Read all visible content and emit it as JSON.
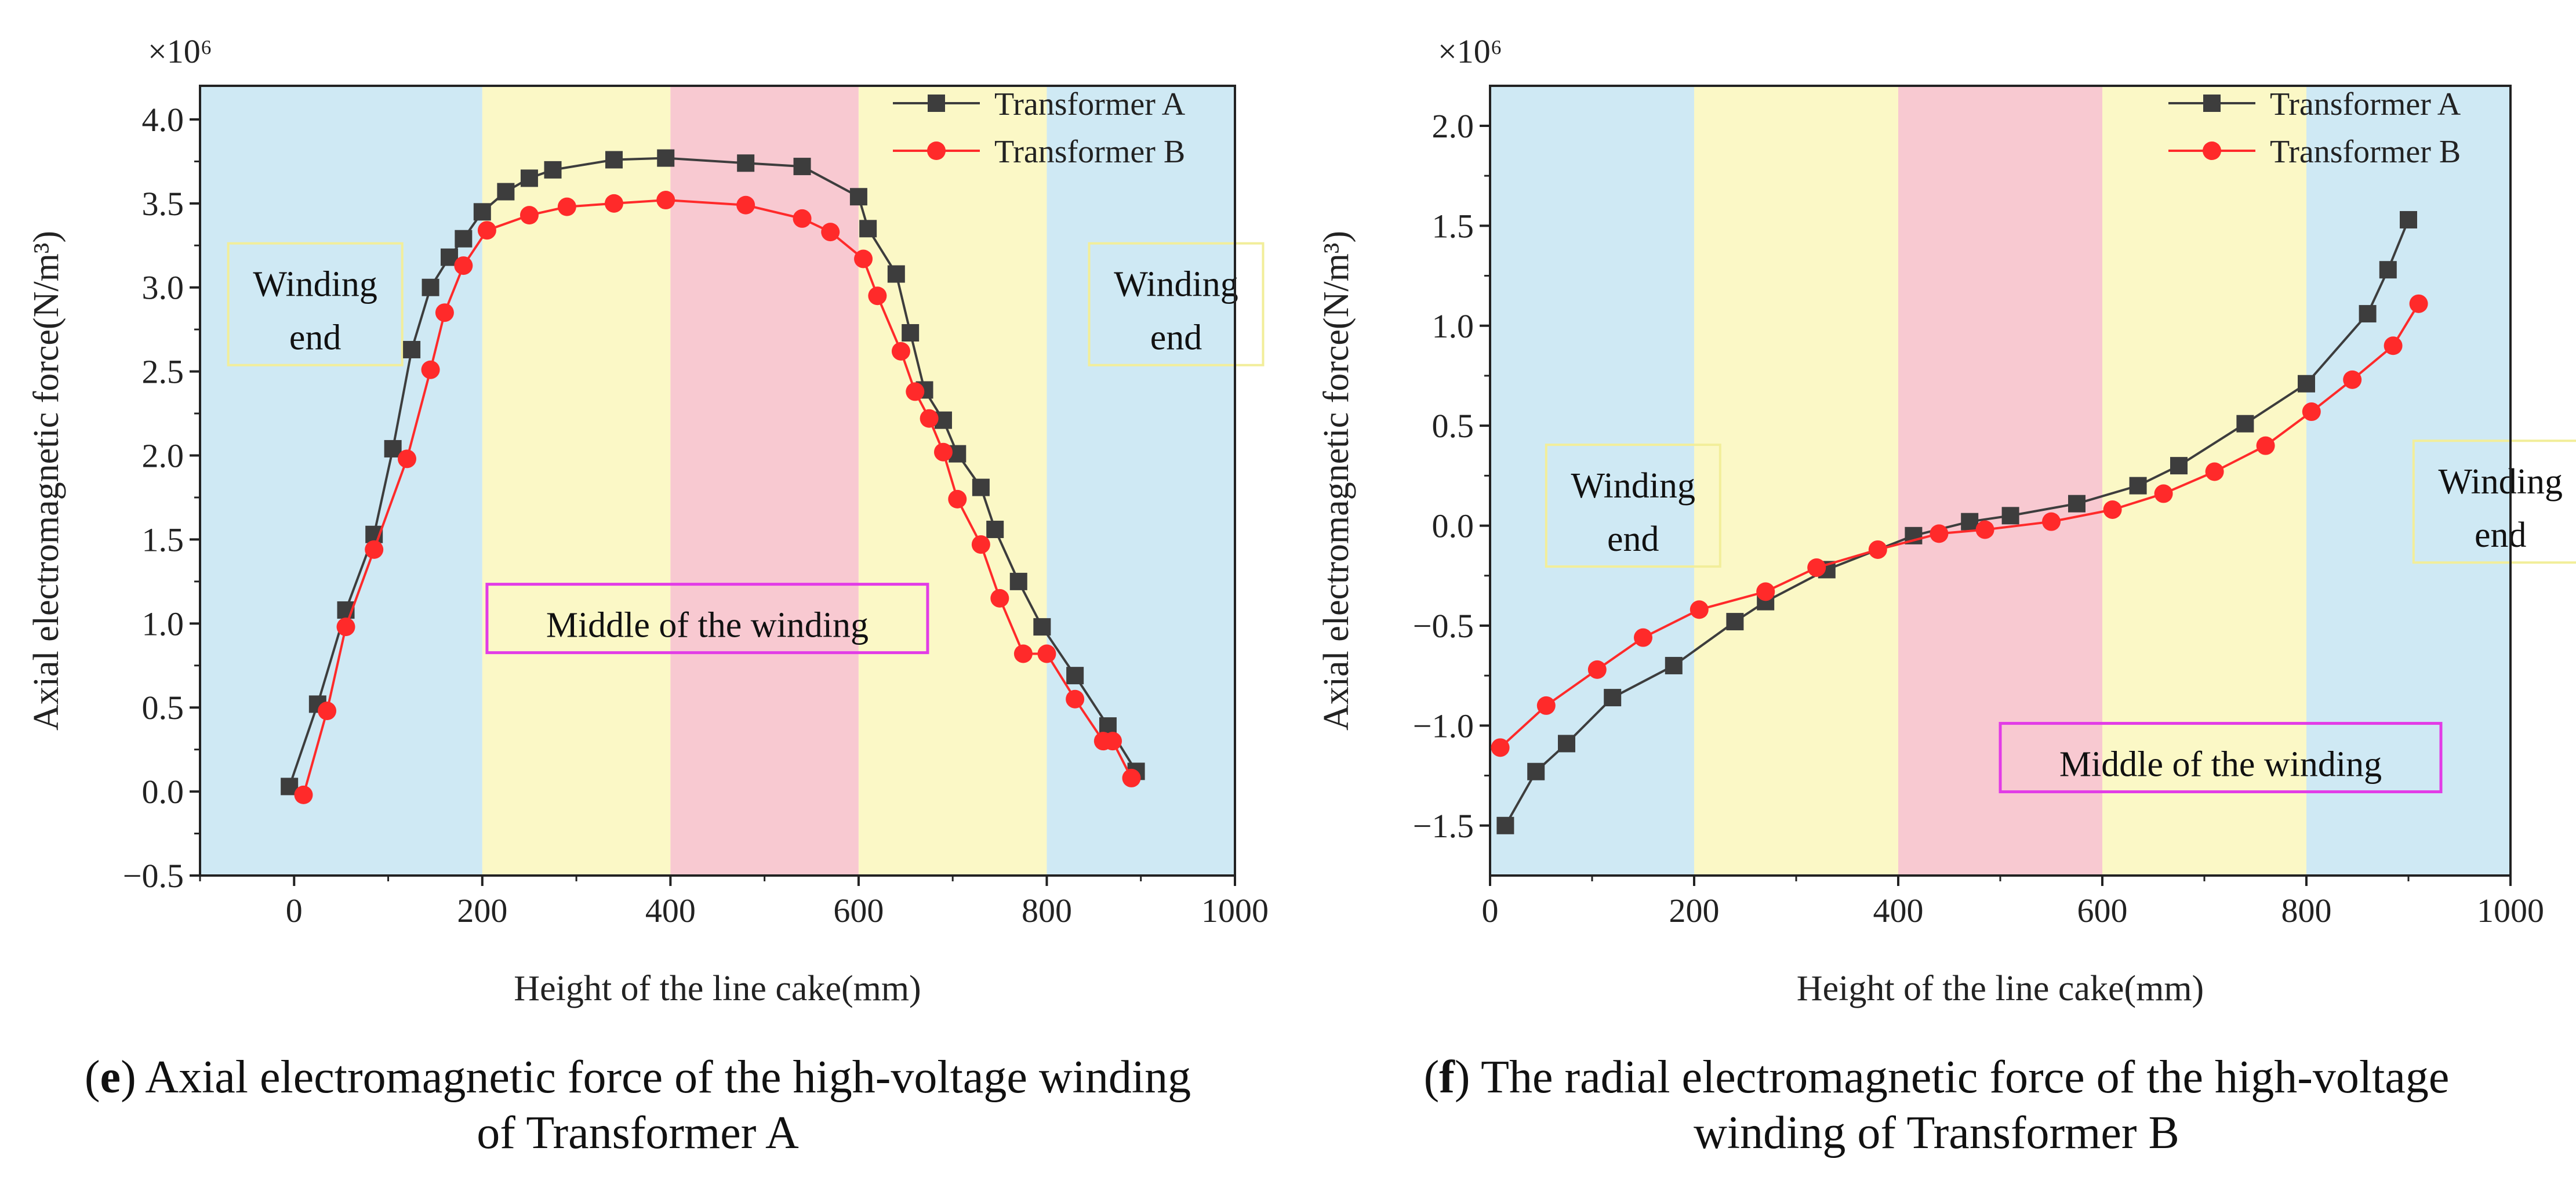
{
  "colors": {
    "series_a": "#3d3d3d",
    "series_b": "#ff2a2a",
    "band_blue": "#cfe9f4",
    "band_yellow": "#fbf8c6",
    "band_pink": "#f8c9d1",
    "winding_end_box": "#f2ee9a",
    "middle_box": "#e23ce6"
  },
  "chart_data": [
    {
      "type": "line",
      "xlabel": "Height of the line cake(mm)",
      "ylabel": "Axial electromagnetic force(N/m³)",
      "multiplier": "×10⁶",
      "xlim": [
        -100,
        1000
      ],
      "ylim": [
        -0.5,
        4.2
      ],
      "xticks": [
        0,
        200,
        400,
        600,
        800,
        1000
      ],
      "yticks": [
        -0.5,
        0.0,
        0.5,
        1.0,
        1.5,
        2.0,
        2.5,
        3.0,
        3.5,
        4.0
      ],
      "bands": [
        {
          "from": -100,
          "to": 200,
          "color": "band_blue"
        },
        {
          "from": 200,
          "to": 400,
          "color": "band_yellow"
        },
        {
          "from": 400,
          "to": 600,
          "color": "band_pink"
        },
        {
          "from": 600,
          "to": 800,
          "color": "band_yellow"
        },
        {
          "from": 800,
          "to": 1000,
          "color": "band_blue"
        }
      ],
      "annotations": [
        {
          "lines": [
            "Winding",
            "end"
          ],
          "x": -70,
          "y": 2.9,
          "style": "winding_end_box"
        },
        {
          "lines": [
            "Winding",
            "end"
          ],
          "x": 845,
          "y": 2.9,
          "style": "winding_end_box"
        },
        {
          "lines": [
            "Middle of the winding"
          ],
          "x": 205,
          "y": 1.03,
          "style": "middle_box"
        }
      ],
      "legend_position": "top-right",
      "series": [
        {
          "name": "Transformer A",
          "color": "series_a",
          "marker": "square",
          "x": [
            -5,
            25,
            55,
            85,
            105,
            125,
            145,
            165,
            180,
            200,
            225,
            250,
            275,
            340,
            395,
            480,
            540,
            600,
            610,
            640,
            655,
            670,
            690,
            705,
            730,
            745,
            770,
            795,
            830,
            865,
            895
          ],
          "y": [
            0.03,
            0.52,
            1.08,
            1.53,
            2.04,
            2.63,
            3.0,
            3.18,
            3.29,
            3.45,
            3.57,
            3.65,
            3.7,
            3.76,
            3.77,
            3.74,
            3.72,
            3.54,
            3.35,
            3.08,
            2.73,
            2.39,
            2.21,
            2.01,
            1.81,
            1.56,
            1.25,
            0.98,
            0.69,
            0.39,
            0.12
          ]
        },
        {
          "name": "Transformer B",
          "color": "series_b",
          "marker": "circle",
          "x": [
            10,
            35,
            55,
            85,
            120,
            145,
            160,
            180,
            205,
            250,
            290,
            340,
            395,
            480,
            540,
            570,
            605,
            620,
            645,
            660,
            675,
            690,
            705,
            730,
            750,
            775,
            800,
            830,
            860,
            870,
            890
          ],
          "y": [
            -0.02,
            0.48,
            0.98,
            1.44,
            1.98,
            2.51,
            2.85,
            3.13,
            3.34,
            3.43,
            3.48,
            3.5,
            3.52,
            3.49,
            3.41,
            3.33,
            3.17,
            2.95,
            2.62,
            2.38,
            2.22,
            2.02,
            1.74,
            1.47,
            1.15,
            0.82,
            0.82,
            0.55,
            0.3,
            0.3,
            0.08
          ]
        }
      ]
    },
    {
      "type": "line",
      "xlabel": "Height of the line cake(mm)",
      "ylabel": "Axial electromagnetic force(N/m³)",
      "multiplier": "×10⁶",
      "xlim": [
        0,
        1000
      ],
      "ylim": [
        -1.75,
        2.2
      ],
      "xticks": [
        0,
        200,
        400,
        600,
        800,
        1000
      ],
      "yticks": [
        -1.5,
        -1.0,
        -0.5,
        0.0,
        0.5,
        1.0,
        1.5,
        2.0
      ],
      "bands": [
        {
          "from": 0,
          "to": 200,
          "color": "band_blue"
        },
        {
          "from": 200,
          "to": 400,
          "color": "band_yellow"
        },
        {
          "from": 400,
          "to": 600,
          "color": "band_pink"
        },
        {
          "from": 600,
          "to": 800,
          "color": "band_yellow"
        },
        {
          "from": 800,
          "to": 1000,
          "color": "band_blue"
        }
      ],
      "annotations": [
        {
          "lines": [
            "Winding",
            "end"
          ],
          "x": 55,
          "y": 0.1,
          "style": "winding_end_box"
        },
        {
          "lines": [
            "Winding",
            "end"
          ],
          "x": 905,
          "y": 0.12,
          "style": "winding_end_box"
        },
        {
          "lines": [
            "Middle of the winding"
          ],
          "x": 500,
          "y": -1.16,
          "style": "middle_box"
        }
      ],
      "legend_position": "top-right",
      "series": [
        {
          "name": "Transformer A",
          "color": "series_a",
          "marker": "square",
          "x": [
            15,
            45,
            75,
            120,
            180,
            240,
            270,
            330,
            415,
            470,
            510,
            575,
            635,
            675,
            740,
            800,
            860,
            880,
            900
          ],
          "y": [
            -1.5,
            -1.23,
            -1.09,
            -0.86,
            -0.7,
            -0.48,
            -0.38,
            -0.22,
            -0.05,
            0.02,
            0.05,
            0.11,
            0.2,
            0.3,
            0.51,
            0.71,
            1.06,
            1.28,
            1.53
          ]
        },
        {
          "name": "Transformer B",
          "color": "series_b",
          "marker": "circle",
          "x": [
            10,
            55,
            105,
            150,
            205,
            270,
            320,
            380,
            440,
            485,
            550,
            610,
            660,
            710,
            760,
            805,
            845,
            885,
            910
          ],
          "y": [
            -1.11,
            -0.9,
            -0.72,
            -0.56,
            -0.42,
            -0.33,
            -0.21,
            -0.12,
            -0.04,
            -0.02,
            0.02,
            0.08,
            0.16,
            0.27,
            0.4,
            0.57,
            0.73,
            0.9,
            1.11
          ]
        }
      ]
    }
  ],
  "captions": [
    {
      "letter": "e",
      "line1": ") Axial electromagnetic force of the high-voltage winding",
      "line2": "of Transformer A"
    },
    {
      "letter": "f",
      "line1": ") The radial electromagnetic force of the high-voltage",
      "line2": "winding of Transformer B"
    }
  ]
}
